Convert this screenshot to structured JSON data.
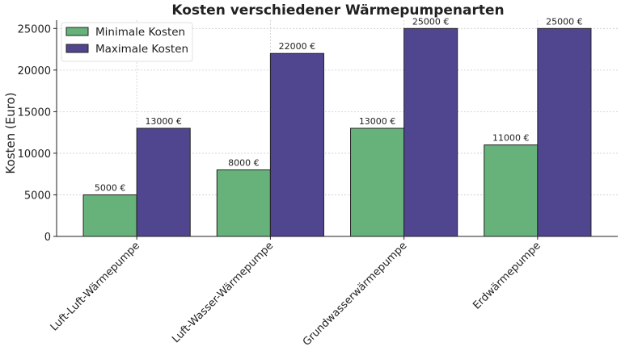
{
  "chart_data": {
    "type": "bar",
    "title": "Kosten verschiedener Wärmepumpenarten",
    "xlabel": "",
    "ylabel": "Kosten (Euro)",
    "ylim": [
      0,
      26000
    ],
    "yticks": [
      0,
      5000,
      10000,
      15000,
      20000,
      25000
    ],
    "grid": true,
    "legend_placement": "top-left",
    "categories": [
      "Luft-Luft-Wärmepumpe",
      "Luft-Wasser-Wärmepumpe",
      "Grundwasserwärmepumpe",
      "Erdwärmepumpe"
    ],
    "series": [
      {
        "name": "Minimale Kosten",
        "values": [
          5000,
          8000,
          13000,
          11000
        ],
        "labels": [
          "5000 €",
          "8000 €",
          "13000 €",
          "11000 €"
        ],
        "color": "#66b27a"
      },
      {
        "name": "Maximale Kosten",
        "values": [
          13000,
          22000,
          25000,
          25000
        ],
        "labels": [
          "13000 €",
          "22000 €",
          "25000 €",
          "25000 €"
        ],
        "color": "#4f468f"
      }
    ]
  }
}
